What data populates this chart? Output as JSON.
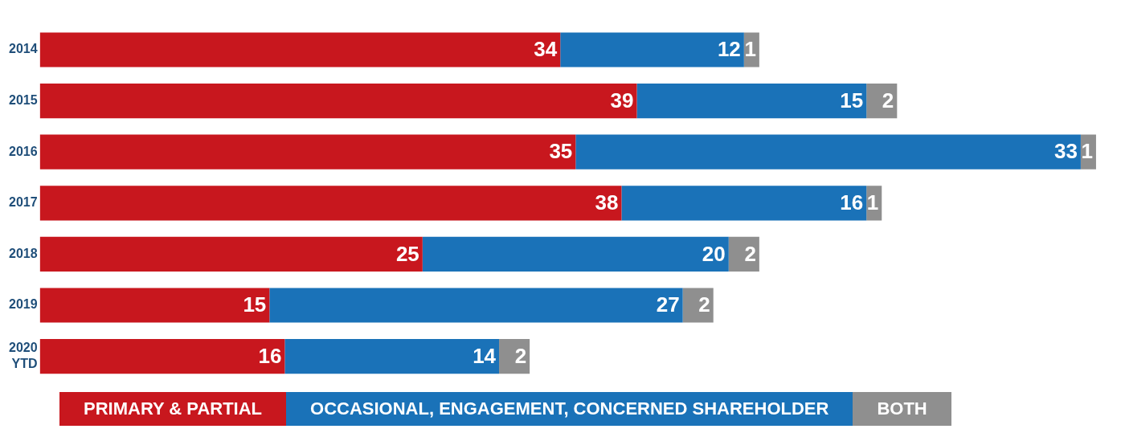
{
  "chart_data": {
    "type": "bar",
    "orientation": "horizontal",
    "stacked": true,
    "data_labels": true,
    "legend": "bottom",
    "grid": false,
    "categories": [
      "2014",
      "2015",
      "2016",
      "2017",
      "2018",
      "2019",
      "2020 YTD"
    ],
    "series": [
      {
        "name": "PRIMARY & PARTIAL",
        "color": "#c8171e",
        "values": [
          34,
          39,
          35,
          38,
          25,
          15,
          16
        ]
      },
      {
        "name": "OCCASIONAL, ENGAGEMENT, CONCERNED SHAREHOLDER",
        "color": "#1a72b8",
        "values": [
          12,
          15,
          33,
          16,
          20,
          27,
          14
        ]
      },
      {
        "name": "BOTH",
        "color": "#8f8f8f",
        "values": [
          1,
          2,
          1,
          1,
          2,
          2,
          2
        ]
      }
    ]
  }
}
